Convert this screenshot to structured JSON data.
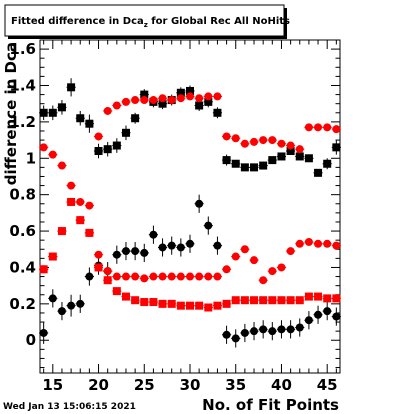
{
  "footer_timestamp": "Wed Jan 13 15:06:15 2021",
  "chart_data": {
    "type": "scatter",
    "title": "Fitted difference in Dca",
    "title_subscript": "z",
    "title_suffix": " for Global Rec All NoHits",
    "xlabel": "No. of Fit Points",
    "ylabel": "difference in Dca",
    "xlim": [
      13.6,
      46.4
    ],
    "ylim": [
      -0.18,
      1.65
    ],
    "xticks": [
      15,
      20,
      25,
      30,
      35,
      40,
      45
    ],
    "yticks": [
      0,
      0.2,
      0.4,
      0.6,
      0.8,
      1,
      1.2,
      1.4,
      1.6
    ],
    "ytick_labels": [
      "0",
      "0.2",
      "0.4",
      "0.6",
      "0.8",
      "1",
      "1.2",
      "1.4",
      "1.6"
    ],
    "grid": false,
    "colors": {
      "red": "#ff0000",
      "black": "#000000",
      "frame": "#000000"
    },
    "series": [
      {
        "marker": "square",
        "color": "#000000",
        "x": [
          14,
          15,
          16,
          17,
          18,
          19,
          20,
          21,
          22,
          23,
          24,
          25,
          26,
          27,
          28,
          29,
          30,
          31,
          32,
          33,
          34,
          35,
          36,
          37,
          38,
          39,
          40,
          41,
          42,
          43,
          44,
          45,
          46
        ],
        "y": [
          1.25,
          1.25,
          1.28,
          1.39,
          1.22,
          1.19,
          1.04,
          1.05,
          1.07,
          1.14,
          1.22,
          1.35,
          1.31,
          1.3,
          1.32,
          1.36,
          1.37,
          1.29,
          1.31,
          1.25,
          0.99,
          0.97,
          0.95,
          0.95,
          0.96,
          0.99,
          1.01,
          1.04,
          1.01,
          1.0,
          0.92,
          0.97,
          1.06
        ],
        "err": [
          0.04,
          0.04,
          0.04,
          0.05,
          0.04,
          0.05,
          0.04,
          0.04,
          0.04,
          0.04,
          0.03,
          0.03,
          0.03,
          0.03,
          0.03,
          0.03,
          0.03,
          0.03,
          0.03,
          0.03,
          0.03,
          0.02,
          0.02,
          0.02,
          0.02,
          0.02,
          0.02,
          0.02,
          0.02,
          0.02,
          0.02,
          0.03,
          0.04
        ]
      },
      {
        "marker": "circle",
        "color": "#ff0000",
        "x": [
          14,
          15,
          16,
          17,
          18,
          19,
          20,
          21,
          22,
          23,
          24,
          25,
          26,
          27,
          28,
          29,
          30,
          31,
          32,
          33,
          34,
          35,
          36,
          37,
          38,
          39,
          40,
          41,
          42,
          43,
          44,
          45,
          46
        ],
        "y": [
          1.06,
          1.02,
          0.96,
          0.85,
          0.76,
          0.74,
          1.12,
          1.26,
          1.29,
          1.31,
          1.32,
          1.32,
          1.32,
          1.33,
          1.32,
          1.33,
          1.34,
          1.33,
          1.34,
          1.34,
          1.12,
          1.11,
          1.08,
          1.09,
          1.1,
          1.1,
          1.08,
          1.07,
          1.05,
          1.17,
          1.17,
          1.17,
          1.16
        ],
        "err": [
          0,
          0,
          0,
          0,
          0,
          0,
          0,
          0,
          0,
          0,
          0,
          0,
          0,
          0,
          0,
          0,
          0,
          0,
          0,
          0,
          0,
          0,
          0,
          0,
          0,
          0,
          0,
          0,
          0,
          0,
          0,
          0,
          0
        ]
      },
      {
        "marker": "circle",
        "color": "#000000",
        "x": [
          14,
          15,
          16,
          17,
          18,
          19,
          20,
          21,
          22,
          23,
          24,
          25,
          26,
          27,
          28,
          29,
          30,
          31,
          32,
          33,
          34,
          35,
          36,
          37,
          38,
          39,
          40,
          41,
          42,
          43,
          44,
          45,
          46
        ],
        "y": [
          0.04,
          0.23,
          0.16,
          0.19,
          0.2,
          0.35,
          0.41,
          0.38,
          0.47,
          0.49,
          0.49,
          0.48,
          0.58,
          0.51,
          0.52,
          0.51,
          0.53,
          0.75,
          0.63,
          0.52,
          0.03,
          0.01,
          0.04,
          0.05,
          0.06,
          0.05,
          0.06,
          0.06,
          0.07,
          0.11,
          0.14,
          0.16,
          0.13
        ],
        "err": [
          0.06,
          0.05,
          0.05,
          0.06,
          0.05,
          0.05,
          0.05,
          0.05,
          0.05,
          0.05,
          0.05,
          0.05,
          0.05,
          0.05,
          0.05,
          0.05,
          0.05,
          0.05,
          0.05,
          0.05,
          0.05,
          0.05,
          0.05,
          0.05,
          0.05,
          0.05,
          0.05,
          0.05,
          0.05,
          0.05,
          0.05,
          0.05,
          0.05
        ]
      },
      {
        "marker": "circle",
        "color": "#ff0000",
        "x": [
          14,
          15,
          16,
          17,
          18,
          19,
          20,
          21,
          22,
          23,
          24,
          25,
          26,
          27,
          28,
          29,
          30,
          31,
          32,
          33,
          34,
          35,
          36,
          37,
          38,
          39,
          40,
          41,
          42,
          43,
          44,
          45,
          46
        ],
        "y": [
          0.39,
          0.46,
          0.6,
          0.76,
          0.66,
          0.59,
          0.47,
          0.38,
          0.35,
          0.35,
          0.35,
          0.34,
          0.35,
          0.35,
          0.35,
          0.35,
          0.35,
          0.35,
          0.35,
          0.35,
          0.39,
          0.46,
          0.5,
          0.44,
          0.33,
          0.38,
          0.4,
          0.49,
          0.53,
          0.54,
          0.53,
          0.53,
          0.52
        ],
        "err": [
          0,
          0,
          0,
          0,
          0,
          0,
          0,
          0,
          0,
          0,
          0,
          0,
          0,
          0,
          0,
          0,
          0,
          0,
          0,
          0,
          0,
          0,
          0,
          0,
          0,
          0,
          0,
          0,
          0,
          0,
          0,
          0,
          0
        ]
      },
      {
        "marker": "square",
        "color": "#ff0000",
        "x": [
          14,
          15,
          16,
          17,
          18,
          19,
          20,
          21,
          22,
          23,
          24,
          25,
          26,
          27,
          28,
          29,
          30,
          31,
          32,
          33,
          34,
          35,
          36,
          37,
          38,
          39,
          40,
          41,
          42,
          43,
          44,
          45,
          46
        ],
        "y": [
          0.39,
          0.46,
          0.6,
          0.76,
          0.66,
          0.59,
          0.4,
          0.33,
          0.27,
          0.24,
          0.22,
          0.21,
          0.21,
          0.2,
          0.2,
          0.19,
          0.19,
          0.19,
          0.18,
          0.19,
          0.2,
          0.22,
          0.22,
          0.22,
          0.22,
          0.22,
          0.22,
          0.22,
          0.22,
          0.24,
          0.24,
          0.23,
          0.23
        ],
        "err": [
          0,
          0,
          0,
          0,
          0,
          0,
          0,
          0,
          0,
          0,
          0,
          0,
          0,
          0,
          0,
          0,
          0,
          0,
          0,
          0,
          0,
          0,
          0,
          0,
          0,
          0,
          0,
          0,
          0,
          0,
          0,
          0,
          0
        ]
      }
    ]
  }
}
